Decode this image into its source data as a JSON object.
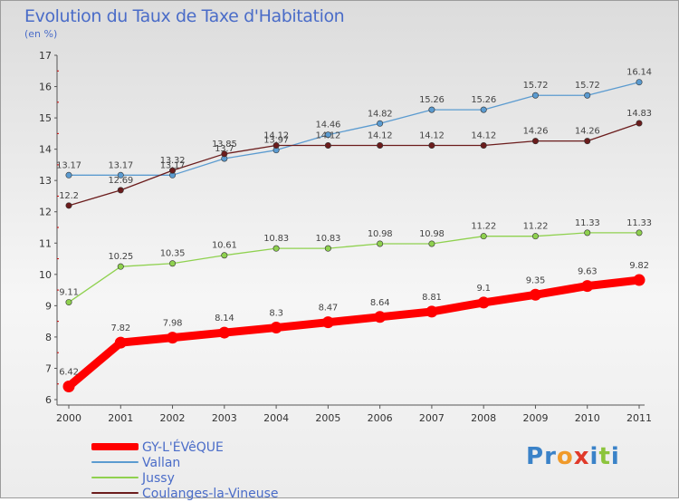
{
  "chart_data": {
    "type": "line",
    "title": "Evolution du Taux de Taxe d'Habitation",
    "subtitle": "(en %)",
    "categories": [
      "2000",
      "2001",
      "2002",
      "2003",
      "2004",
      "2005",
      "2006",
      "2007",
      "2008",
      "2009",
      "2010",
      "2011"
    ],
    "ylim": [
      6,
      17
    ],
    "yticks": [
      6,
      7,
      8,
      9,
      10,
      11,
      12,
      13,
      14,
      15,
      16,
      17
    ],
    "grid": false,
    "legend_position": "bottom-left",
    "series": [
      {
        "name": "GY-L'ÉVêQUE",
        "color": "#ff0000",
        "width": "thick",
        "values": [
          6.42,
          7.82,
          7.98,
          8.14,
          8.3,
          8.47,
          8.64,
          8.81,
          9.1,
          9.35,
          9.63,
          9.82
        ],
        "labels": [
          "6.42",
          "7.82",
          "7.98",
          "8.14",
          "8.3",
          "8.47",
          "8.64",
          "8.81",
          "9.1",
          "9.35",
          "9.63",
          "9.82"
        ]
      },
      {
        "name": "Vallan",
        "color": "#5b9bd0",
        "width": "thin",
        "values": [
          13.17,
          13.17,
          13.17,
          13.7,
          13.97,
          14.46,
          14.82,
          15.26,
          15.26,
          15.72,
          15.72,
          16.14
        ],
        "labels": [
          "13.17",
          "13.17",
          "13.17",
          "13.7",
          "13.97",
          "14.46",
          "14.82",
          "15.26",
          "15.26",
          "15.72",
          "15.72",
          "16.14"
        ]
      },
      {
        "name": "Jussy",
        "color": "#8fd14f",
        "width": "thin",
        "values": [
          9.11,
          10.25,
          10.35,
          10.61,
          10.83,
          10.83,
          10.98,
          10.98,
          11.22,
          11.22,
          11.33,
          11.33
        ],
        "labels": [
          "9.11",
          "10.25",
          "10.35",
          "10.61",
          "10.83",
          "10.83",
          "10.98",
          "10.98",
          "11.22",
          "11.22",
          "11.33",
          "11.33"
        ]
      },
      {
        "name": "Coulanges-la-Vineuse",
        "color": "#6b1c1c",
        "width": "thin",
        "values": [
          12.2,
          12.69,
          13.32,
          13.85,
          14.12,
          14.12,
          14.12,
          14.12,
          14.12,
          14.26,
          14.26,
          14.83
        ],
        "labels": [
          "12.2",
          "12.69",
          "13.32",
          "13.85",
          "14.12",
          "14.12",
          "14.12",
          "14.12",
          "14.12",
          "14.26",
          "14.26",
          "14.83"
        ]
      }
    ]
  },
  "legend": {
    "items": [
      {
        "label": "GY-L'ÉVêQUE",
        "color": "#ff0000"
      },
      {
        "label": "Vallan",
        "color": "#5b9bd0"
      },
      {
        "label": "Jussy",
        "color": "#8fd14f"
      },
      {
        "label": "Coulanges-la-Vineuse",
        "color": "#6b1c1c"
      }
    ]
  },
  "logo": {
    "letters": [
      {
        "ch": "P",
        "color": "#3a82c8"
      },
      {
        "ch": "r",
        "color": "#3a82c8"
      },
      {
        "ch": "o",
        "color": "#f09a2a"
      },
      {
        "ch": "x",
        "color": "#e03a2a"
      },
      {
        "ch": "i",
        "color": "#3a82c8"
      },
      {
        "ch": "t",
        "color": "#8cc43c"
      },
      {
        "ch": "i",
        "color": "#3a82c8"
      }
    ]
  }
}
